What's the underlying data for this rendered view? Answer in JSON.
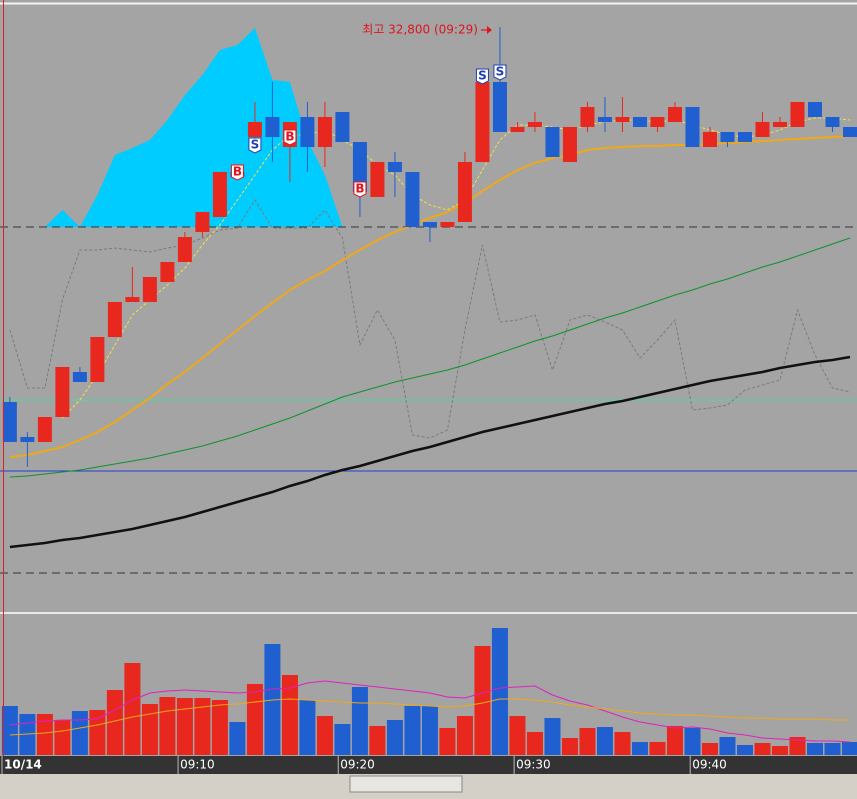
{
  "chart_data": {
    "type": "candlestick",
    "annotation": {
      "text": "최고 32,800 (09:29)",
      "x": 28,
      "value": 32800,
      "color": "#e0141e"
    },
    "up_color": "#e8281e",
    "down_color": "#1f5fd0",
    "x": [
      0,
      1,
      2,
      3,
      4,
      5,
      6,
      7,
      8,
      9,
      10,
      11,
      12,
      13,
      14,
      15,
      16,
      17,
      18,
      19,
      20,
      21,
      22,
      23,
      24,
      25,
      26,
      27,
      28,
      29,
      30,
      31,
      32,
      33,
      34,
      35,
      36,
      37,
      38,
      39,
      40,
      41,
      42,
      43,
      44,
      45,
      46,
      47,
      48
    ],
    "open": [
      29050,
      28700,
      28650,
      28900,
      29350,
      29250,
      29700,
      30050,
      30050,
      30250,
      30450,
      30750,
      30900,
      31350,
      31700,
      31900,
      31600,
      31900,
      31600,
      31950,
      31650,
      31100,
      31450,
      31350,
      30850,
      30800,
      30850,
      31450,
      32250,
      31750,
      31800,
      31800,
      31450,
      31800,
      31900,
      31850,
      31900,
      31800,
      31850,
      32000,
      31600,
      31750,
      31750,
      31700,
      31800,
      31800,
      32050,
      31900,
      31800
    ],
    "high": [
      29100,
      28750,
      28900,
      29400,
      29400,
      29700,
      30050,
      30400,
      30300,
      30450,
      30750,
      30950,
      31350,
      31350,
      32050,
      32250,
      31850,
      32050,
      32050,
      31950,
      31650,
      31450,
      31550,
      31350,
      30850,
      30850,
      31550,
      32350,
      32800,
      31850,
      31950,
      31800,
      31800,
      32050,
      32100,
      32100,
      31900,
      31900,
      32050,
      32000,
      31800,
      31750,
      31750,
      31950,
      31900,
      32050,
      32050,
      31900,
      31800
    ],
    "low": [
      28650,
      28400,
      28650,
      28900,
      29250,
      29250,
      29700,
      30050,
      30050,
      30250,
      30450,
      30700,
      30900,
      31300,
      31650,
      31450,
      31250,
      31350,
      31400,
      31650,
      30900,
      31100,
      31100,
      30800,
      30650,
      30800,
      30850,
      31450,
      31750,
      31750,
      31750,
      31500,
      31450,
      31750,
      31750,
      31750,
      31800,
      31750,
      31850,
      31600,
      31600,
      31600,
      31650,
      31700,
      31800,
      31800,
      31900,
      31750,
      31700
    ],
    "close": [
      28650,
      28650,
      28900,
      29400,
      29250,
      29700,
      30050,
      30100,
      30300,
      30450,
      30700,
      30950,
      31350,
      31300,
      31850,
      31700,
      31850,
      31600,
      31900,
      31650,
      31150,
      31450,
      31350,
      30800,
      30800,
      30850,
      31450,
      32250,
      31750,
      31800,
      31850,
      31500,
      31800,
      32000,
      31850,
      31900,
      31800,
      31900,
      32000,
      31600,
      31750,
      31650,
      31650,
      31850,
      31850,
      32050,
      31900,
      31800,
      31700
    ],
    "xlim": [
      -0.45,
      48.4
    ],
    "xticks": [
      {
        "value": -0.45,
        "label": "10/14"
      },
      {
        "value": 9.61,
        "label": "09:10"
      },
      {
        "value": 18.76,
        "label": "09:20"
      },
      {
        "value": 28.81,
        "label": "09:30"
      },
      {
        "value": 38.87,
        "label": "09:40"
      }
    ],
    "ylim": [
      26950,
      33030
    ],
    "hlines": [
      {
        "value": 30800,
        "color": "#333333",
        "dashed": true
      },
      {
        "value": 27340,
        "color": "#333333",
        "dashed": true
      },
      {
        "value": 29070,
        "color": "#40e0a0",
        "dashed": false
      },
      {
        "value": 28360,
        "color": "#2040d0",
        "dashed": false
      }
    ],
    "area": {
      "color": "#00ccff",
      "base": 30800,
      "values": [
        null,
        null,
        30800,
        30970,
        30800,
        31120,
        31520,
        31590,
        31670,
        31870,
        32120,
        32320,
        32570,
        32620,
        32790,
        32270,
        32250,
        31670,
        31320,
        30800,
        null,
        null,
        null,
        null,
        null,
        null,
        null,
        null,
        null,
        null,
        null,
        null,
        null,
        null,
        null,
        null,
        null,
        null,
        null,
        null,
        null,
        null,
        null,
        null,
        null,
        null,
        null,
        null,
        null
      ]
    },
    "lines": [
      {
        "color": "#7a7a7a",
        "dashed": true,
        "width": 1,
        "values": [
          29770,
          29190,
          29190,
          30070,
          30570,
          30570,
          30590,
          30570,
          30550,
          30590,
          30620,
          30690,
          30770,
          30790,
          31070,
          30790,
          30790,
          30790,
          30970,
          30690,
          29620,
          29970,
          29670,
          28720,
          28690,
          28770,
          29770,
          30620,
          29850,
          29870,
          29920,
          29370,
          29870,
          29920,
          29850,
          29770,
          29490,
          29670,
          29870,
          28970,
          28990,
          29020,
          29170,
          29220,
          29270,
          29970,
          29520,
          29190,
          29150
        ]
      },
      {
        "color": "#111111",
        "dashed": false,
        "width": 2.5,
        "values": [
          27600,
          27620,
          27640,
          27670,
          27690,
          27720,
          27750,
          27780,
          27820,
          27860,
          27900,
          27950,
          28000,
          28050,
          28100,
          28150,
          28210,
          28260,
          28320,
          28370,
          28410,
          28460,
          28510,
          28560,
          28600,
          28650,
          28700,
          28750,
          28790,
          28830,
          28870,
          28910,
          28950,
          28990,
          29030,
          29060,
          29100,
          29140,
          29180,
          29220,
          29260,
          29290,
          29320,
          29350,
          29390,
          29420,
          29450,
          29470,
          29500
        ]
      },
      {
        "color": "#109030",
        "dashed": false,
        "width": 1,
        "values": [
          28300,
          28310,
          28330,
          28350,
          28370,
          28400,
          28430,
          28460,
          28490,
          28530,
          28570,
          28610,
          28660,
          28710,
          28770,
          28830,
          28890,
          28960,
          29030,
          29100,
          29150,
          29200,
          29250,
          29290,
          29330,
          29370,
          29420,
          29480,
          29540,
          29600,
          29660,
          29710,
          29770,
          29830,
          29890,
          29940,
          30000,
          30060,
          30120,
          30170,
          30230,
          30280,
          30340,
          30400,
          30450,
          30510,
          30570,
          30630,
          30690
        ]
      },
      {
        "color": "#f0a818",
        "dashed": false,
        "width": 2,
        "values": [
          28500,
          28520,
          28560,
          28600,
          28670,
          28750,
          28850,
          28970,
          29090,
          29230,
          29350,
          29490,
          29630,
          29770,
          29910,
          30040,
          30170,
          30270,
          30360,
          30470,
          30570,
          30670,
          30750,
          30820,
          30890,
          30950,
          31040,
          31160,
          31270,
          31370,
          31440,
          31490,
          31520,
          31570,
          31590,
          31600,
          31610,
          31610,
          31620,
          31620,
          31630,
          31640,
          31650,
          31660,
          31670,
          31680,
          31690,
          31700,
          31710
        ]
      },
      {
        "color": "#f8e040",
        "dashed": true,
        "width": 1,
        "values": [
          null,
          null,
          null,
          28890,
          29070,
          29320,
          29620,
          29920,
          30070,
          30220,
          30390,
          30620,
          30820,
          31070,
          31320,
          31570,
          31720,
          31720,
          31770,
          31670,
          31570,
          31420,
          31320,
          31120,
          31020,
          30970,
          31070,
          31370,
          31670,
          31820,
          31820,
          31800,
          31770,
          31820,
          31850,
          31870,
          31870,
          31850,
          31870,
          31820,
          31770,
          31720,
          31700,
          31720,
          31770,
          31850,
          31890,
          31890,
          31870
        ]
      }
    ],
    "markers": [
      {
        "label": "B",
        "x": 13,
        "value": 31350,
        "color": "#e0141e"
      },
      {
        "label": "S",
        "x": 14,
        "value": 31620,
        "color": "#1f3fb0"
      },
      {
        "label": "B",
        "x": 16,
        "value": 31700,
        "color": "#e0141e"
      },
      {
        "label": "B",
        "x": 20,
        "value": 31180,
        "color": "#e0141e"
      },
      {
        "label": "S",
        "x": 27,
        "value": 32310,
        "color": "#1f3fb0"
      },
      {
        "label": "S",
        "x": 28,
        "value": 32350,
        "color": "#1f3fb0"
      }
    ],
    "volume": {
      "ylim": [
        0,
        140
      ],
      "values": [
        49,
        41,
        41,
        35,
        44,
        45,
        65,
        92,
        51,
        58,
        57,
        57,
        55,
        33,
        71,
        111,
        80,
        55,
        39,
        31,
        68,
        29,
        35,
        49,
        49,
        27,
        39,
        109,
        127,
        39,
        23,
        37,
        17,
        27,
        28,
        23,
        13,
        13,
        29,
        27,
        12,
        18,
        10,
        12,
        9,
        18,
        12,
        12,
        13
      ],
      "lines": [
        {
          "color": "#e020c0",
          "values": [
            30,
            32,
            34,
            35,
            35,
            36,
            45,
            55,
            62,
            64,
            65,
            64,
            63,
            62,
            63,
            66,
            67,
            72,
            74,
            72,
            70,
            68,
            66,
            64,
            62,
            58,
            57,
            62,
            67,
            68,
            69,
            60,
            54,
            50,
            44,
            38,
            33,
            30,
            27,
            28,
            26,
            22,
            20,
            17,
            16,
            15,
            14,
            14,
            13
          ]
        },
        {
          "color": "#f0a818",
          "values": [
            20,
            21,
            22,
            24,
            27,
            30,
            34,
            38,
            41,
            44,
            46,
            48,
            50,
            51,
            53,
            55,
            56,
            55,
            54,
            53,
            52,
            52,
            51,
            50,
            49,
            48,
            49,
            52,
            56,
            56,
            55,
            53,
            50,
            48,
            46,
            44,
            42,
            41,
            40,
            40,
            39,
            38,
            37,
            37,
            36,
            36,
            36,
            35,
            35
          ]
        }
      ]
    }
  }
}
